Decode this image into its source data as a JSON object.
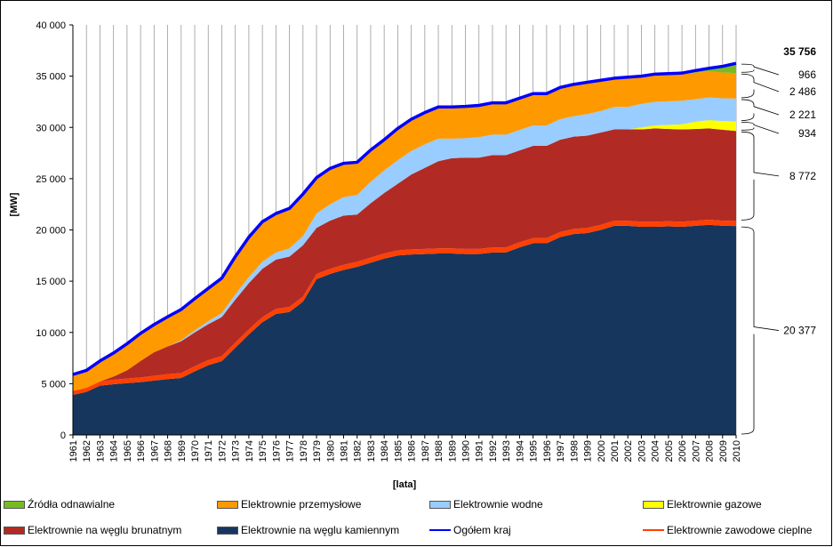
{
  "chart_data": {
    "type": "area",
    "ylabel": "[MW]",
    "xlabel": "[lata]",
    "ylim": [
      0,
      40000
    ],
    "yticks": [
      0,
      5000,
      10000,
      15000,
      20000,
      25000,
      30000,
      35000,
      40000
    ],
    "ytick_labels": [
      "0",
      "5 000",
      "10 000",
      "15 000",
      "20 000",
      "25 000",
      "30 000",
      "35 000",
      "40 000"
    ],
    "grid": "vertical",
    "x": [
      "1961",
      "1962",
      "1963",
      "1964",
      "1965",
      "1966",
      "1967",
      "1968",
      "1969",
      "1970",
      "1971",
      "1972",
      "1973",
      "1974",
      "1975",
      "1976",
      "1977",
      "1978",
      "1979",
      "1980",
      "1981",
      "1982",
      "1983",
      "1984",
      "1985",
      "1986",
      "1987",
      "1988",
      "1989",
      "1990",
      "1991",
      "1992",
      "1993",
      "1994",
      "1995",
      "1996",
      "1997",
      "1998",
      "1999",
      "2000",
      "2001",
      "2002",
      "2003",
      "2004",
      "2005",
      "2006",
      "2007",
      "2008",
      "2009",
      "2010"
    ],
    "series": [
      {
        "name": "Elektrownie na węglu kamiennym",
        "color": "#17365d",
        "values": [
          3900,
          4200,
          4800,
          4950,
          5050,
          5150,
          5300,
          5450,
          5550,
          6200,
          6800,
          7200,
          8500,
          9800,
          11000,
          11800,
          12000,
          13000,
          15200,
          15700,
          16100,
          16400,
          16800,
          17200,
          17500,
          17600,
          17650,
          17700,
          17700,
          17650,
          17650,
          17800,
          17800,
          18300,
          18700,
          18700,
          19300,
          19600,
          19700,
          20000,
          20400,
          20400,
          20300,
          20300,
          20350,
          20300,
          20400,
          20500,
          20400,
          20377
        ]
      },
      {
        "name": "Elektrownie zawodowe cieplne",
        "color": "#ff4000",
        "values": [
          400,
          400,
          420,
          440,
          450,
          460,
          470,
          480,
          490,
          500,
          500,
          500,
          500,
          500,
          500,
          500,
          500,
          500,
          500,
          500,
          500,
          500,
          500,
          500,
          500,
          500,
          500,
          500,
          500,
          500,
          500,
          500,
          500,
          500,
          500,
          500,
          500,
          500,
          500,
          500,
          500,
          500,
          500,
          500,
          500,
          500,
          500,
          500,
          500,
          500
        ]
      },
      {
        "name": "Elektrownie na węglu brunatnym",
        "color": "#b22a24",
        "values": [
          0,
          0,
          0,
          300,
          800,
          1600,
          2300,
          2700,
          3100,
          3300,
          3500,
          3800,
          4200,
          4500,
          4700,
          4800,
          4900,
          5000,
          4500,
          4700,
          4800,
          4600,
          5300,
          5900,
          6500,
          7300,
          7900,
          8500,
          8800,
          8900,
          8900,
          9000,
          9000,
          8950,
          9000,
          9000,
          9000,
          9000,
          9000,
          9000,
          8900,
          8900,
          9000,
          9100,
          9000,
          9000,
          8950,
          8900,
          8870,
          8772
        ]
      },
      {
        "name": "Elektrownie gazowe",
        "color": "#ffff00",
        "values": [
          0,
          0,
          0,
          0,
          0,
          0,
          0,
          0,
          0,
          0,
          0,
          0,
          0,
          0,
          0,
          0,
          0,
          0,
          0,
          0,
          0,
          0,
          0,
          0,
          0,
          0,
          0,
          0,
          0,
          0,
          0,
          0,
          0,
          0,
          0,
          0,
          0,
          0,
          0,
          0,
          0,
          0,
          200,
          300,
          400,
          500,
          700,
          800,
          850,
          934
        ]
      },
      {
        "name": "Elektrownie wodne",
        "color": "#99ccff",
        "values": [
          0,
          0,
          0,
          0,
          0,
          0,
          0,
          0,
          100,
          200,
          300,
          400,
          500,
          600,
          700,
          700,
          800,
          900,
          1400,
          1600,
          1800,
          1900,
          2100,
          2200,
          2300,
          2300,
          2300,
          2200,
          1900,
          1900,
          2000,
          2000,
          2000,
          2000,
          2000,
          2000,
          2000,
          2000,
          2100,
          2100,
          2200,
          2200,
          2300,
          2300,
          2300,
          2300,
          2200,
          2220,
          2220,
          2221
        ]
      },
      {
        "name": "Elektrownie przemysłowe",
        "color": "#ff9900",
        "values": [
          1600,
          1700,
          2000,
          2300,
          2600,
          2700,
          2700,
          2900,
          3000,
          3100,
          3200,
          3400,
          3700,
          3900,
          3900,
          3800,
          3900,
          4100,
          3500,
          3500,
          3300,
          3200,
          3100,
          3000,
          3100,
          3100,
          3100,
          3100,
          3100,
          3100,
          3100,
          3100,
          3100,
          3100,
          3100,
          3100,
          3100,
          3100,
          3100,
          3000,
          2800,
          2900,
          2700,
          2700,
          2700,
          2600,
          2600,
          2550,
          2520,
          2486
        ]
      },
      {
        "name": "Źródła odnawialne",
        "color": "#77bb22",
        "values": [
          0,
          0,
          0,
          0,
          0,
          0,
          0,
          0,
          0,
          0,
          0,
          0,
          0,
          0,
          0,
          0,
          0,
          0,
          0,
          0,
          0,
          0,
          0,
          0,
          0,
          0,
          0,
          0,
          0,
          0,
          0,
          0,
          0,
          0,
          0,
          0,
          0,
          0,
          0,
          0,
          0,
          0,
          0,
          0,
          0,
          100,
          200,
          300,
          600,
          966
        ]
      }
    ],
    "total_series": {
      "name": "Ogółem kraj",
      "color": "#0000ff"
    },
    "annotations": {
      "total": "35 756",
      "segments": [
        {
          "series": "Źródła odnawialne",
          "label": "966"
        },
        {
          "series": "Elektrownie przemysłowe",
          "label": "2 486"
        },
        {
          "series": "Elektrownie wodne",
          "label": "2 221"
        },
        {
          "series": "Elektrownie gazowe",
          "label": "934"
        },
        {
          "series": "Elektrownie na węglu brunatnym",
          "label": "8 772"
        },
        {
          "series": "Elektrownie na węglu kamiennym",
          "label": "20 377"
        }
      ]
    }
  },
  "legend": [
    {
      "label": "Źródła odnawialne",
      "color": "#77bb22",
      "kind": "area"
    },
    {
      "label": "Elektrownie przemysłowe",
      "color": "#ff9900",
      "kind": "area"
    },
    {
      "label": "Elektrownie wodne",
      "color": "#99ccff",
      "kind": "area"
    },
    {
      "label": "Elektrownie gazowe",
      "color": "#ffff00",
      "kind": "area"
    },
    {
      "label": "Elektrownie na węglu brunatnym",
      "color": "#b22a24",
      "kind": "area"
    },
    {
      "label": "Elektrownie na węglu kamiennym",
      "color": "#17365d",
      "kind": "area"
    },
    {
      "label": "Ogółem kraj",
      "color": "#0000ff",
      "kind": "line"
    },
    {
      "label": "Elektrownie zawodowe cieplne",
      "color": "#ff4000",
      "kind": "line"
    }
  ]
}
